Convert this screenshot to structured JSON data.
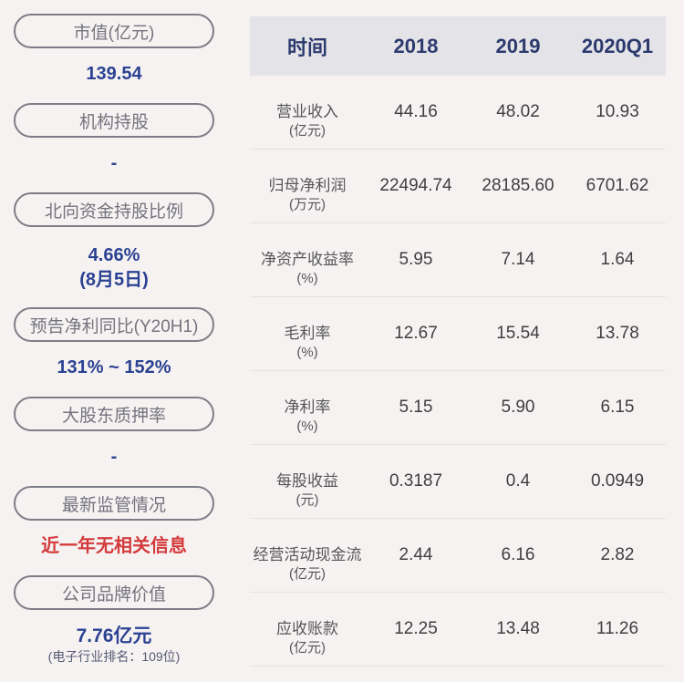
{
  "colors": {
    "page_background": "#f6f2f1",
    "value_blue": "#2b4293",
    "alert_red": "#d43a3c",
    "header_navy": "#2c3a6d",
    "header_background": "#e4e3e8",
    "pill_border_gray": "#7d7d88"
  },
  "sidebar": {
    "items": [
      {
        "label": "市值(亿元)",
        "value": "139.54"
      },
      {
        "label": "机构持股",
        "value": "-"
      },
      {
        "label": "北向资金持股比例",
        "value": "4.66%",
        "value2": "(8月5日)"
      },
      {
        "label": "预告净利同比(Y20H1)",
        "value": "131% ~ 152%"
      },
      {
        "label": "大股东质押率",
        "value": "-"
      },
      {
        "label": "最新监管情况",
        "value": "近一年无相关信息"
      },
      {
        "label": "公司品牌价值",
        "value": "7.76亿元",
        "value2": "(电子行业排名：109位)"
      }
    ]
  },
  "chart_data": {
    "type": "table",
    "title": "",
    "headers": [
      "时间",
      "2018",
      "2019",
      "2020Q1"
    ],
    "rows": [
      {
        "label": "营业收入",
        "unit": "(亿元)",
        "values": [
          "44.16",
          "48.02",
          "10.93"
        ]
      },
      {
        "label": "归母净利润",
        "unit": "(万元)",
        "values": [
          "22494.74",
          "28185.60",
          "6701.62"
        ]
      },
      {
        "label": "净资产收益率",
        "unit": "(%)",
        "values": [
          "5.95",
          "7.14",
          "1.64"
        ]
      },
      {
        "label": "毛利率",
        "unit": "(%)",
        "values": [
          "12.67",
          "15.54",
          "13.78"
        ]
      },
      {
        "label": "净利率",
        "unit": "(%)",
        "values": [
          "5.15",
          "5.90",
          "6.15"
        ]
      },
      {
        "label": "每股收益",
        "unit": "(元)",
        "values": [
          "0.3187",
          "0.4",
          "0.0949"
        ]
      },
      {
        "label": "经营活动现金流",
        "unit": "(亿元)",
        "values": [
          "2.44",
          "6.16",
          "2.82"
        ]
      },
      {
        "label": "应收账款",
        "unit": "(亿元)",
        "values": [
          "12.25",
          "13.48",
          "11.26"
        ]
      }
    ]
  }
}
